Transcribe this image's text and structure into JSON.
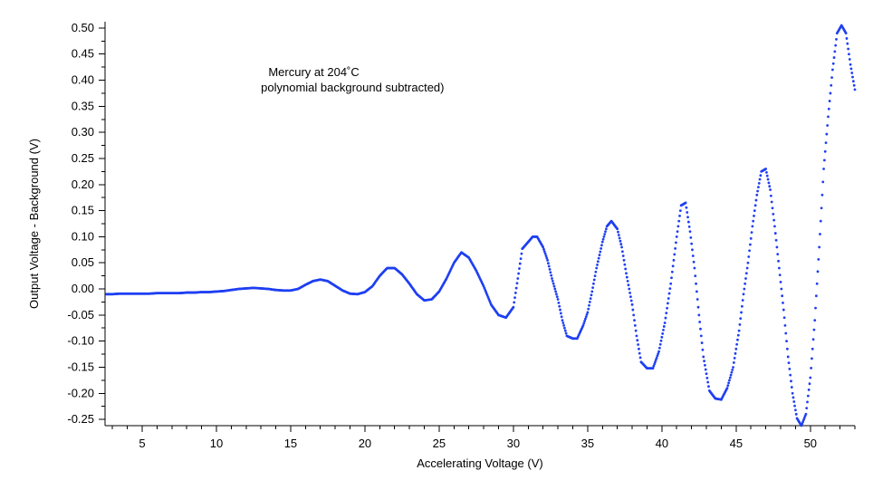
{
  "chart_data": {
    "type": "scatter",
    "title": "",
    "xlabel": "Accelerating Voltage (V)",
    "ylabel": "Output Voltage - Background (V)",
    "xlim": [
      2.5,
      53
    ],
    "ylim": [
      -0.262,
      0.512
    ],
    "xticks": [
      5,
      10,
      15,
      20,
      25,
      30,
      35,
      40,
      45,
      50
    ],
    "xtick_labels": [
      "5",
      "10",
      "15",
      "20",
      "25",
      "30",
      "35",
      "40",
      "45",
      "50"
    ],
    "yticks": [
      0.5,
      0.45,
      0.4,
      0.35,
      0.3,
      0.25,
      0.2,
      0.15,
      0.1,
      0.05,
      0.0,
      -0.05,
      -0.1,
      -0.15,
      -0.2,
      -0.25
    ],
    "ytick_labels": [
      "0.50",
      "0.45",
      "0.40",
      "0.35",
      "0.30",
      "0.25",
      "0.20",
      "0.15",
      "0.10",
      "0.05",
      "0.00",
      "-0.05",
      "-0.10",
      "-0.15",
      "-0.20",
      "-0.25"
    ],
    "grid": false,
    "annotations": [
      {
        "text": "Mercury at 204˚C",
        "x": 13.5,
        "y": 0.408
      },
      {
        "text": "polynomial background subtracted)",
        "x": 13.0,
        "y": 0.378
      }
    ],
    "series": [
      {
        "color": "#1f3ff2",
        "points": [
          [
            2.6,
            -0.01
          ],
          [
            3.0,
            -0.01
          ],
          [
            3.5,
            -0.009
          ],
          [
            4.0,
            -0.009
          ],
          [
            4.5,
            -0.009
          ],
          [
            5.0,
            -0.009
          ],
          [
            5.5,
            -0.009
          ],
          [
            6.0,
            -0.008
          ],
          [
            6.5,
            -0.008
          ],
          [
            7.0,
            -0.008
          ],
          [
            7.5,
            -0.008
          ],
          [
            8.0,
            -0.007
          ],
          [
            8.5,
            -0.007
          ],
          [
            9.0,
            -0.006
          ],
          [
            9.5,
            -0.006
          ],
          [
            10.0,
            -0.005
          ],
          [
            10.5,
            -0.004
          ],
          [
            11.0,
            -0.002
          ],
          [
            11.5,
            0.0
          ],
          [
            12.0,
            0.001
          ],
          [
            12.5,
            0.002
          ],
          [
            13.0,
            0.001
          ],
          [
            13.5,
            0.0
          ],
          [
            14.0,
            -0.002
          ],
          [
            14.5,
            -0.003
          ],
          [
            15.0,
            -0.003
          ],
          [
            15.5,
            0.0
          ],
          [
            16.0,
            0.008
          ],
          [
            16.5,
            0.015
          ],
          [
            17.0,
            0.018
          ],
          [
            17.5,
            0.015
          ],
          [
            18.0,
            0.006
          ],
          [
            18.5,
            -0.003
          ],
          [
            19.0,
            -0.009
          ],
          [
            19.5,
            -0.01
          ],
          [
            20.0,
            -0.006
          ],
          [
            20.5,
            0.005
          ],
          [
            21.0,
            0.025
          ],
          [
            21.5,
            0.04
          ],
          [
            22.0,
            0.04
          ],
          [
            22.5,
            0.028
          ],
          [
            23.0,
            0.01
          ],
          [
            23.5,
            -0.01
          ],
          [
            24.0,
            -0.022
          ],
          [
            24.5,
            -0.02
          ],
          [
            25.0,
            -0.005
          ],
          [
            25.5,
            0.02
          ],
          [
            26.0,
            0.05
          ],
          [
            26.5,
            0.07
          ],
          [
            27.0,
            0.06
          ],
          [
            27.5,
            0.035
          ],
          [
            28.0,
            0.005
          ],
          [
            28.5,
            -0.03
          ],
          [
            29.0,
            -0.05
          ],
          [
            29.5,
            -0.055
          ],
          [
            30.0,
            -0.035
          ],
          [
            30.3,
            0.02
          ],
          [
            30.6,
            0.077
          ],
          [
            31.0,
            0.09
          ],
          [
            31.3,
            0.1
          ],
          [
            31.6,
            0.1
          ],
          [
            32.0,
            0.08
          ],
          [
            32.3,
            0.055
          ],
          [
            32.6,
            0.02
          ],
          [
            33.0,
            -0.02
          ],
          [
            33.3,
            -0.06
          ],
          [
            33.6,
            -0.09
          ],
          [
            34.0,
            -0.095
          ],
          [
            34.3,
            -0.095
          ],
          [
            34.7,
            -0.07
          ],
          [
            35.0,
            -0.045
          ],
          [
            35.3,
            -0.005
          ],
          [
            35.6,
            0.04
          ],
          [
            36.0,
            0.09
          ],
          [
            36.3,
            0.12
          ],
          [
            36.6,
            0.13
          ],
          [
            37.0,
            0.115
          ],
          [
            37.3,
            0.08
          ],
          [
            37.6,
            0.03
          ],
          [
            38.0,
            -0.03
          ],
          [
            38.3,
            -0.09
          ],
          [
            38.6,
            -0.14
          ],
          [
            39.0,
            -0.152
          ],
          [
            39.4,
            -0.152
          ],
          [
            39.8,
            -0.12
          ],
          [
            40.2,
            -0.065
          ],
          [
            40.6,
            0.01
          ],
          [
            41.0,
            0.1
          ],
          [
            41.3,
            0.16
          ],
          [
            41.6,
            0.165
          ],
          [
            41.9,
            0.11
          ],
          [
            42.2,
            0.04
          ],
          [
            42.5,
            -0.05
          ],
          [
            42.8,
            -0.13
          ],
          [
            43.2,
            -0.195
          ],
          [
            43.6,
            -0.21
          ],
          [
            44.0,
            -0.212
          ],
          [
            44.4,
            -0.19
          ],
          [
            44.8,
            -0.15
          ],
          [
            45.2,
            -0.08
          ],
          [
            45.5,
            -0.01
          ],
          [
            45.8,
            0.05
          ],
          [
            46.1,
            0.12
          ],
          [
            46.4,
            0.18
          ],
          [
            46.7,
            0.225
          ],
          [
            47.0,
            0.23
          ],
          [
            47.3,
            0.19
          ],
          [
            47.6,
            0.12
          ],
          [
            47.9,
            0.04
          ],
          [
            48.2,
            -0.04
          ],
          [
            48.5,
            -0.13
          ],
          [
            48.8,
            -0.2
          ],
          [
            49.1,
            -0.248
          ],
          [
            49.4,
            -0.262
          ],
          [
            49.7,
            -0.24
          ],
          [
            50.0,
            -0.17
          ],
          [
            50.3,
            -0.06
          ],
          [
            50.6,
            0.08
          ],
          [
            50.9,
            0.23
          ],
          [
            51.2,
            0.33
          ],
          [
            51.5,
            0.42
          ],
          [
            51.8,
            0.49
          ],
          [
            52.1,
            0.505
          ],
          [
            52.4,
            0.49
          ],
          [
            52.7,
            0.43
          ],
          [
            53.0,
            0.382
          ]
        ]
      }
    ]
  }
}
